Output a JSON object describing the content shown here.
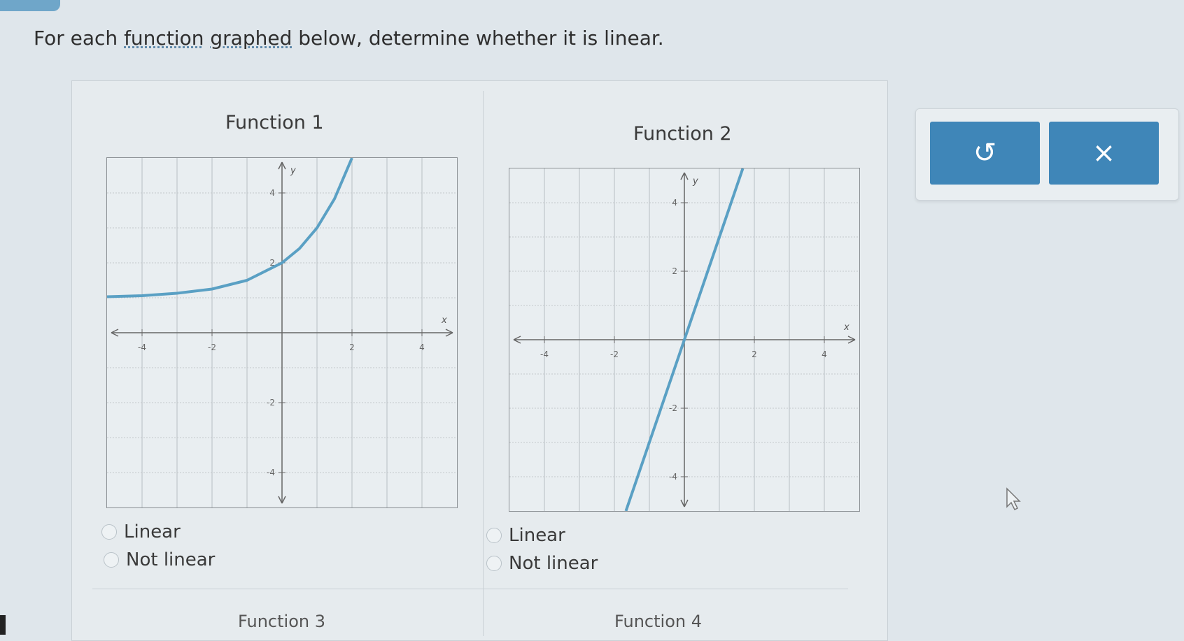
{
  "question": {
    "prefix": "For each ",
    "link1": "function",
    "space": " ",
    "link2": "graphed",
    "suffix": " below, determine whether it is linear."
  },
  "functions": [
    {
      "title": "Function 1",
      "options": [
        "Linear",
        "Not linear"
      ]
    },
    {
      "title": "Function 2",
      "options": [
        "Linear",
        "Not linear"
      ]
    }
  ],
  "next_functions": [
    "Function 3",
    "Function 4"
  ],
  "buttons": {
    "undo_icon": "undo-icon",
    "undo_glyph": "↺",
    "clear_icon": "close-icon",
    "clear_glyph": "×"
  },
  "colors": {
    "accent": "#3f86b8",
    "curve": "#5aa0c4"
  },
  "chart_data": [
    {
      "type": "line",
      "title": "Function 1",
      "xlabel": "x",
      "ylabel": "y",
      "xlim": [
        -5,
        5
      ],
      "ylim": [
        -5,
        5
      ],
      "grid": true,
      "xticks": [
        "-4",
        "-2",
        "2",
        "4"
      ],
      "yticks": [
        "4",
        "2",
        "-2",
        "-4"
      ],
      "series": [
        {
          "x": [
            -5,
            -4,
            -3,
            -2,
            -1,
            0,
            0.5,
            1,
            1.5,
            2
          ],
          "y": [
            1.03,
            1.06,
            1.13,
            1.25,
            1.5,
            2,
            2.41,
            3,
            3.83,
            5
          ]
        }
      ]
    },
    {
      "type": "line",
      "title": "Function 2",
      "xlabel": "x",
      "ylabel": "y",
      "xlim": [
        -5,
        5
      ],
      "ylim": [
        -5,
        5
      ],
      "grid": true,
      "xticks": [
        "-4",
        "-2",
        "2",
        "4"
      ],
      "yticks": [
        "4",
        "2",
        "-2",
        "-4"
      ],
      "series": [
        {
          "x": [
            -1.67,
            1.67
          ],
          "y": [
            -5,
            5
          ]
        }
      ]
    }
  ]
}
